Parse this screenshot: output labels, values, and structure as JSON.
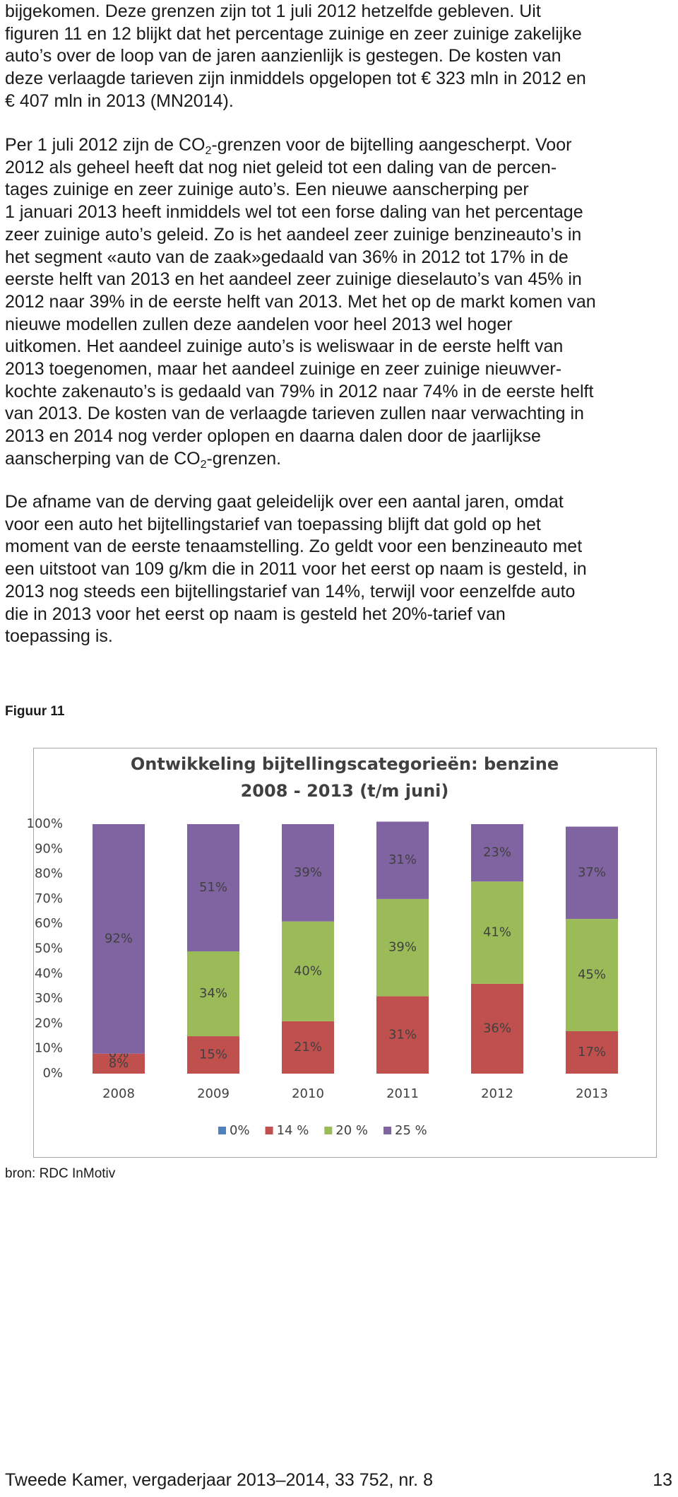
{
  "paragraphs": [
    {
      "lines": [
        "bijgekomen. Deze grenzen zijn tot 1 juli 2012 hetzelfde gebleven. Uit",
        "figuren 11 en 12 blijkt dat het percentage zuinige en zeer zuinige zakelijke",
        "auto’s over de loop van de jaren aanzienlijk is gestegen. De kosten van",
        "deze verlaagde tarieven zijn inmiddels opgelopen tot € 323 mln in 2012 en",
        "€ 407 mln in 2013 (MN2014)."
      ]
    },
    {
      "lines": [
        {
          "before": "Per 1 juli 2012 zijn de CO",
          "sub": "2",
          "after": "-grenzen voor de bijtelling aangescherpt. Voor"
        },
        "2012 als geheel heeft dat nog niet geleid tot een daling van de percen-",
        "tages zuinige en zeer zuinige auto’s. Een nieuwe aanscherping per",
        "1 januari 2013 heeft inmiddels wel tot een forse daling van het percentage",
        "zeer zuinige auto’s geleid. Zo is het aandeel zeer zuinige benzineauto’s in",
        "het segment «auto van de zaak»gedaald van 36% in 2012 tot 17% in de",
        "eerste helft van 2013 en het aandeel zeer zuinige dieselauto’s van 45% in",
        "2012 naar 39% in de eerste helft van 2013. Met het op de markt komen van",
        "nieuwe modellen zullen deze aandelen voor heel 2013 wel hoger",
        "uitkomen. Het aandeel zuinige auto’s is weliswaar in de eerste helft van",
        "2013 toegenomen, maar het aandeel zuinige en zeer zuinige nieuwver-",
        "kochte zakenauto’s is gedaald van 79% in 2012 naar 74% in de eerste helft",
        "van 2013. De kosten van de verlaagde tarieven zullen naar verwachting in",
        "2013 en 2014 nog verder oplopen en daarna dalen door de jaarlijkse",
        {
          "before": "aanscherping van de CO",
          "sub": "2",
          "after": "-grenzen."
        }
      ]
    },
    {
      "lines": [
        "De afname van de derving gaat geleidelijk over een aantal jaren, omdat",
        "voor een auto het bijtellingstarief van toepassing blijft dat gold op het",
        "moment van de eerste tenaamstelling. Zo geldt voor een benzineauto met",
        "een uitstoot van 109 g/km die in 2011 voor het eerst op naam is gesteld, in",
        "2013 nog steeds een bijtellingstarief van 14%, terwijl voor eenzelfde auto",
        "die in 2013 voor het eerst op naam is gesteld het 20%-tarief van",
        "toepassing is."
      ]
    }
  ],
  "figure_caption": "Figuur 11",
  "chart_data": {
    "type": "stacked_bar",
    "title": [
      "Ontwikkeling bijtellingscategorieën: benzine",
      "2008 - 2013 (t/m juni)"
    ],
    "categories": [
      "2008",
      "2009",
      "2010",
      "2011",
      "2012",
      "2013"
    ],
    "series": [
      {
        "name": "0%",
        "color": "#4f81bd",
        "values": [
          0,
          0,
          0,
          0,
          0,
          0
        ],
        "value_labels": [
          null,
          null,
          null,
          null,
          null,
          null
        ]
      },
      {
        "name": "14 %",
        "color": "#c0504d",
        "values": [
          8,
          15,
          21,
          31,
          36,
          17
        ],
        "value_labels": [
          "8%",
          "15%",
          "21%",
          "31%",
          "36%",
          "17%"
        ]
      },
      {
        "name": "20 %",
        "color": "#9bbb59",
        "values": [
          0,
          34,
          40,
          39,
          41,
          45
        ],
        "value_labels": [
          "0%",
          "34%",
          "40%",
          "39%",
          "41%",
          "45%"
        ]
      },
      {
        "name": "25 %",
        "color": "#8064a2",
        "values": [
          92,
          51,
          39,
          31,
          23,
          37
        ],
        "value_labels": [
          "92%",
          "51%",
          "39%",
          "31%",
          "23%",
          "37%"
        ]
      }
    ],
    "ylim": [
      0,
      100
    ],
    "yticks": [
      {
        "value": 0,
        "label": "0%"
      },
      {
        "value": 10,
        "label": "10%"
      },
      {
        "value": 20,
        "label": "20%"
      },
      {
        "value": 30,
        "label": "30%"
      },
      {
        "value": 40,
        "label": "40%"
      },
      {
        "value": 50,
        "label": "50%"
      },
      {
        "value": 60,
        "label": "60%"
      },
      {
        "value": 70,
        "label": "70%"
      },
      {
        "value": 80,
        "label": "80%"
      },
      {
        "value": 90,
        "label": "90%"
      },
      {
        "value": 100,
        "label": "100%"
      }
    ],
    "legend": "bottom",
    "grid": false
  },
  "source": "bron: RDC InMotiv",
  "footer": {
    "left": "Tweede Kamer, vergaderjaar 2013–2014, 33 752, nr. 8",
    "page": "13"
  }
}
